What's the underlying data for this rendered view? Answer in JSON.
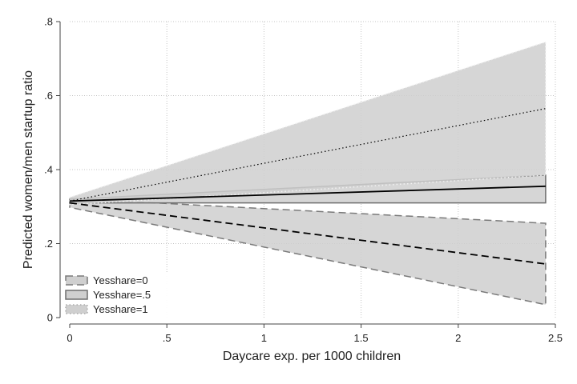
{
  "chart_data": {
    "type": "line",
    "title": "",
    "xlabel": "Daycare exp. per 1000 children",
    "ylabel": "Predicted women/men startup ratio",
    "xlim": [
      0,
      2.5
    ],
    "ylim": [
      0,
      0.8
    ],
    "x_ticks": [
      0,
      0.5,
      1,
      1.5,
      2,
      2.5
    ],
    "x_tick_labels": [
      "0",
      ".5",
      "1",
      "1.5",
      "2",
      "2.5"
    ],
    "y_ticks": [
      0,
      0.2,
      0.4,
      0.6,
      0.8
    ],
    "y_tick_labels": [
      "0",
      ".2",
      ".4",
      ".6",
      ".8"
    ],
    "grid": true,
    "legend_position": "bottom-left",
    "series": [
      {
        "name": "Yesshare=0",
        "x": [
          0,
          2.45
        ],
        "y": [
          0.31,
          0.145
        ],
        "ci_lower": [
          0.298,
          0.035
        ],
        "ci_upper": [
          0.322,
          0.255
        ],
        "line_style": "dashed",
        "line_color": "#000000",
        "band_color": "#cfcfcf",
        "band_edge_color": "#7a7a7a",
        "band_edge_style": "dashed"
      },
      {
        "name": "Yesshare=.5",
        "x": [
          0,
          2.45
        ],
        "y": [
          0.315,
          0.355
        ],
        "ci_lower": [
          0.31,
          0.31
        ],
        "ci_upper": [
          0.32,
          0.385
        ],
        "line_style": "solid",
        "line_color": "#000000",
        "band_color": "#cfcfcf",
        "band_edge_color": "#6e6e6e",
        "band_edge_style": "solid"
      },
      {
        "name": "Yesshare=1",
        "x": [
          0,
          2.45
        ],
        "y": [
          0.315,
          0.565
        ],
        "ci_lower": [
          0.305,
          0.385
        ],
        "ci_upper": [
          0.325,
          0.745
        ],
        "line_style": "dotted",
        "line_color": "#000000",
        "band_color": "#cfcfcf",
        "band_edge_color": "#f2f2f2",
        "band_edge_style": "dotted"
      }
    ]
  }
}
